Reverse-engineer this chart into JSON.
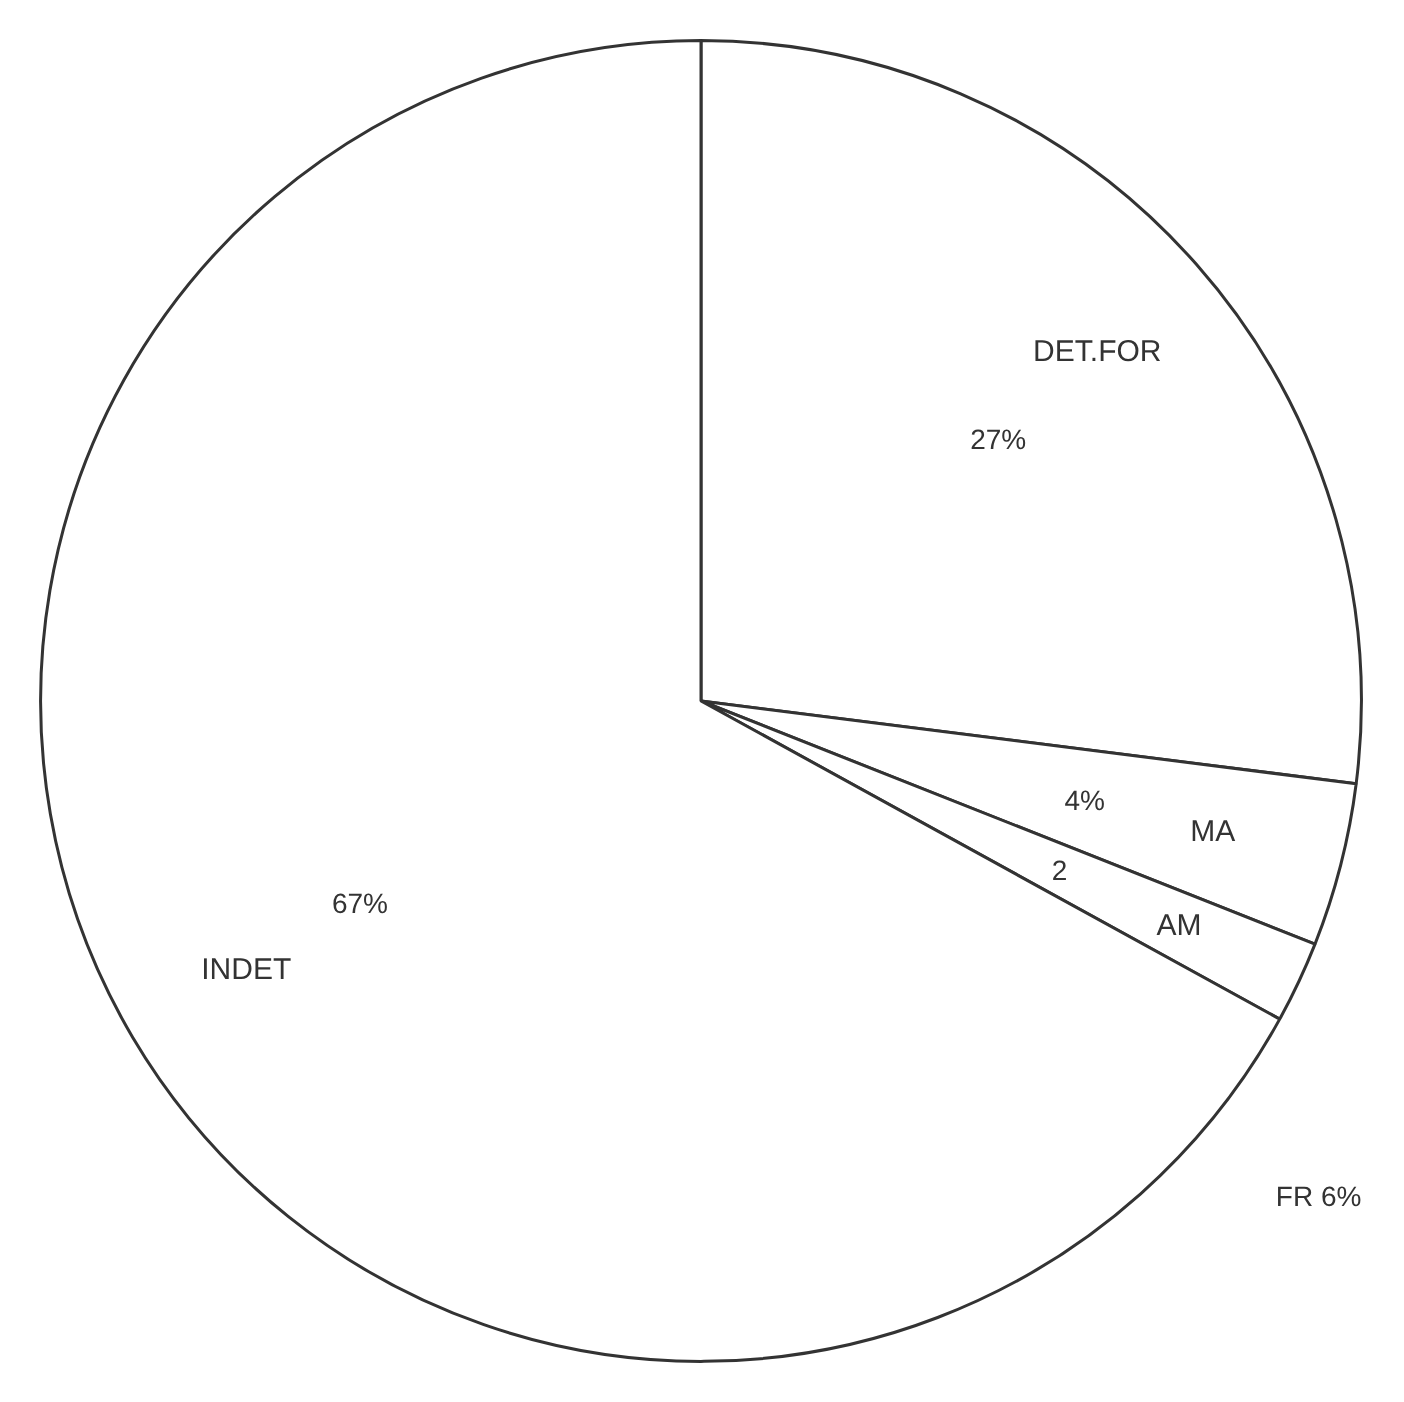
{
  "chart_data": {
    "type": "pie",
    "categories": [
      "DET.FOR",
      "MA",
      "AM",
      "INDET"
    ],
    "values": [
      27,
      4,
      2,
      67
    ],
    "colors": [
      "#ffffff",
      "#ffffff",
      "#ffffff",
      "#ffffff"
    ],
    "value_labels": [
      "27%",
      "4%",
      "2",
      "67%"
    ],
    "annotations": [
      "FR 6%"
    ]
  }
}
